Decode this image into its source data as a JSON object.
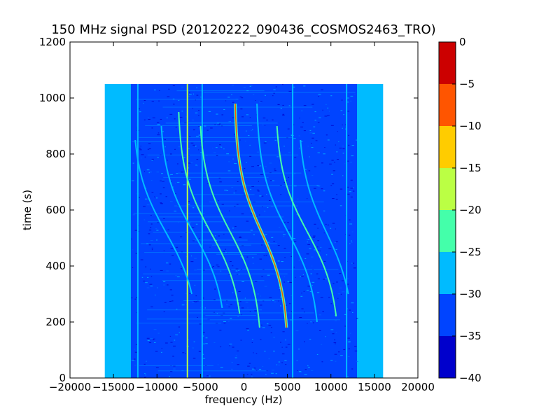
{
  "chart_data": {
    "type": "heatmap",
    "title": "150 MHz signal PSD (20120222_090436_COSMOS2463_TRO)",
    "xlabel": "frequency (Hz)",
    "ylabel": "time (s)",
    "xlim": [
      -20000,
      20000
    ],
    "ylim": [
      0,
      1200
    ],
    "x_ticks": [
      -20000,
      -15000,
      -10000,
      -5000,
      0,
      5000,
      10000,
      15000,
      20000
    ],
    "x_tick_labels": [
      "−20000",
      "−15000",
      "−10000",
      "−5000",
      "0",
      "5000",
      "10000",
      "15000",
      "20000"
    ],
    "y_ticks": [
      0,
      200,
      400,
      600,
      800,
      1000,
      1200
    ],
    "y_tick_labels": [
      "0",
      "200",
      "400",
      "600",
      "800",
      "1000",
      "1200"
    ],
    "data_extent": {
      "x": [
        -16000,
        16000
      ],
      "y": [
        0,
        1050
      ]
    },
    "colorbar": {
      "levels": [
        0,
        -5,
        -10,
        -15,
        -20,
        -25,
        -30,
        -35,
        -40
      ],
      "level_labels": [
        "0",
        "−5",
        "−10",
        "−15",
        "−20",
        "−25",
        "−30",
        "−35",
        "−40"
      ],
      "colors": [
        "#cc0000",
        "#ff5500",
        "#ffcc00",
        "#bbff44",
        "#44ffaa",
        "#00bbff",
        "#0044ff",
        "#0000cc"
      ]
    },
    "background_color": "#0044ff",
    "edge_color": "#00bbff",
    "vertical_lines": [
      {
        "x": -12200,
        "y": [
          0,
          1050
        ],
        "color": "#00bbff"
      },
      {
        "x": -6500,
        "y": [
          0,
          1050
        ],
        "color": "#bbff44"
      },
      {
        "x": -4800,
        "y": [
          0,
          1050
        ],
        "color": "#00bbff"
      },
      {
        "x": 5600,
        "y": [
          0,
          1050
        ],
        "color": "#00bbff"
      },
      {
        "x": 11800,
        "y": [
          0,
          1050
        ],
        "color": "#00bbff"
      }
    ],
    "doppler_curves": [
      {
        "center": 3000,
        "y_mid": 520,
        "top": [
          -1000,
          980
        ],
        "bottom": [
          4900,
          180
        ],
        "color": "#ffcc00",
        "strength": "strong"
      },
      {
        "center": 6500,
        "y_mid": 520,
        "top": [
          1500,
          980
        ],
        "bottom": [
          8400,
          200
        ],
        "color": "#00bbff"
      },
      {
        "center": 8200,
        "y_mid": 520,
        "top": [
          3800,
          900
        ],
        "bottom": [
          10600,
          220
        ],
        "color": "#44ffaa"
      },
      {
        "center": -3000,
        "y_mid": 520,
        "top": [
          -7500,
          950
        ],
        "bottom": [
          -500,
          230
        ],
        "color": "#44ffaa"
      },
      {
        "center": -800,
        "y_mid": 520,
        "top": [
          -5000,
          900
        ],
        "bottom": [
          1800,
          180
        ],
        "color": "#44ffaa"
      },
      {
        "center": -5200,
        "y_mid": 520,
        "top": [
          -9500,
          900
        ],
        "bottom": [
          -2500,
          250
        ],
        "color": "#00bbff"
      },
      {
        "center": 10000,
        "y_mid": 520,
        "top": [
          6500,
          850
        ],
        "bottom": [
          12000,
          300
        ],
        "color": "#00bbff"
      },
      {
        "center": -9000,
        "y_mid": 520,
        "top": [
          -12500,
          850
        ],
        "bottom": [
          -6000,
          300
        ],
        "color": "#00bbff"
      }
    ]
  }
}
